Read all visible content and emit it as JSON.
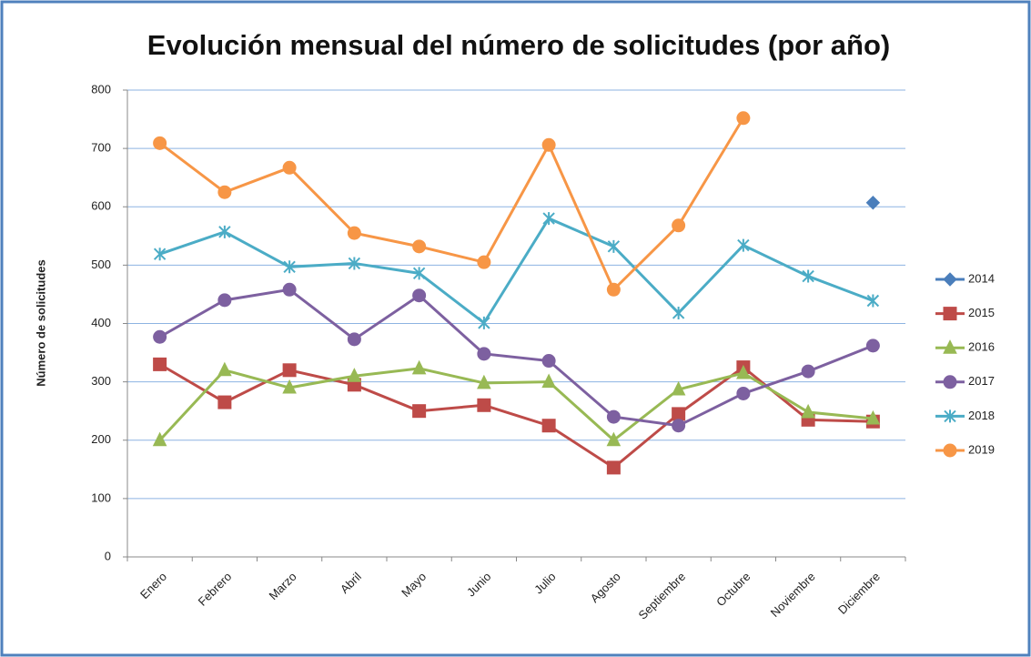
{
  "chart_data": {
    "type": "line",
    "title": "Evolución mensual del número de solicitudes (por año)",
    "y_label": "Número de solicitudes",
    "categories": [
      "Enero",
      "Febrero",
      "Marzo",
      "Abril",
      "Mayo",
      "Junio",
      "Julio",
      "Agosto",
      "Septiembre",
      "Octubre",
      "Noviembre",
      "Diciembre"
    ],
    "series": [
      {
        "name": "2014",
        "color": "#4a7ebb",
        "marker": "diamond",
        "values": [
          null,
          null,
          null,
          null,
          null,
          null,
          null,
          null,
          null,
          null,
          null,
          607
        ]
      },
      {
        "name": "2015",
        "color": "#be4b48",
        "marker": "square",
        "values": [
          330,
          265,
          320,
          295,
          250,
          260,
          225,
          153,
          245,
          325,
          235,
          232
        ]
      },
      {
        "name": "2016",
        "color": "#98b954",
        "marker": "triangle",
        "values": [
          200,
          320,
          290,
          310,
          323,
          298,
          300,
          200,
          287,
          315,
          248,
          237
        ]
      },
      {
        "name": "2017",
        "color": "#7d60a0",
        "marker": "circle",
        "values": [
          377,
          440,
          458,
          373,
          448,
          348,
          336,
          240,
          225,
          280,
          318,
          362
        ]
      },
      {
        "name": "2018",
        "color": "#4bacc6",
        "marker": "star",
        "values": [
          519,
          557,
          497,
          503,
          486,
          401,
          580,
          532,
          418,
          534,
          481,
          439
        ]
      },
      {
        "name": "2019",
        "color": "#f79646",
        "marker": "circle",
        "values": [
          709,
          625,
          667,
          555,
          532,
          505,
          706,
          458,
          568,
          752,
          null,
          null
        ]
      }
    ],
    "ylim": [
      0,
      800
    ],
    "yticks": [
      0,
      100,
      200,
      300,
      400,
      500,
      600,
      700,
      800
    ],
    "grid": true,
    "legend": "right"
  }
}
